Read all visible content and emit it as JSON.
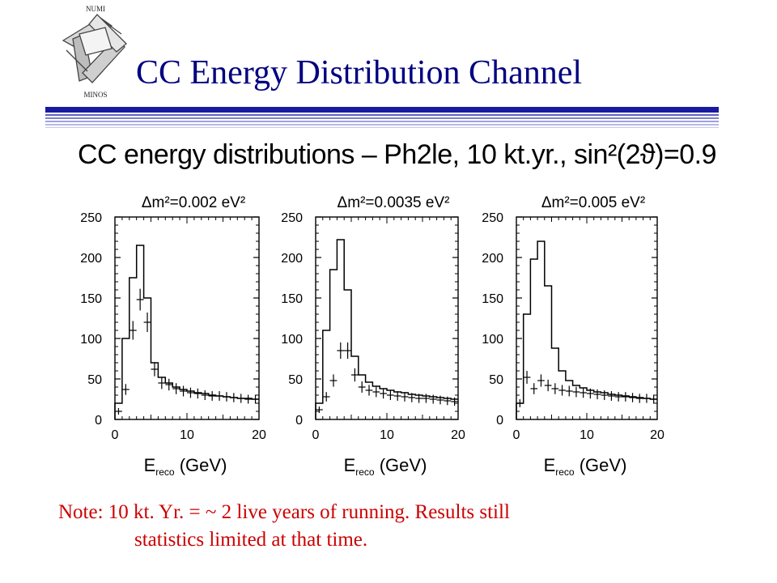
{
  "logo": {
    "top_text": "NUMI",
    "bottom_text": "MINOS"
  },
  "slide": {
    "title": "CC Energy Distribution Channel"
  },
  "figure": {
    "heading": "CC energy distributions – Ph2le, 10 kt.yr., sin²(2ϑ)=0.9"
  },
  "note": {
    "line1": "Note: 10 kt. Yr. = ~ 2 live years of running.  Results still",
    "line2": "statistics limited at that time."
  },
  "colors": {
    "title": "#000080",
    "note": "#cc0000",
    "rule": "#1a1aa0",
    "rule_light": "#8080d0"
  },
  "chart_data": [
    {
      "type": "line",
      "title": "Δm²=0.002 eV²",
      "xlabel": "E_reco (GeV)",
      "xlim": [
        0,
        20
      ],
      "ylim": [
        0,
        250
      ],
      "x_ticks": [
        0,
        10,
        20
      ],
      "y_ticks": [
        0,
        50,
        100,
        150,
        200,
        250
      ],
      "series": [
        {
          "style": "histogram",
          "x": [
            0.5,
            1.5,
            2.5,
            3.5,
            4.5,
            5.5,
            6.5,
            7.5,
            8.5,
            9.5,
            10.5,
            11.5,
            12.5,
            13.5,
            14.5,
            15.5,
            16.5,
            17.5,
            18.5,
            19.5
          ],
          "values": [
            20,
            100,
            175,
            215,
            150,
            70,
            52,
            45,
            40,
            37,
            35,
            33,
            32,
            30,
            29,
            28,
            27,
            26,
            26,
            25
          ]
        },
        {
          "style": "points_with_errors",
          "x": [
            0.5,
            1.5,
            2.5,
            3.5,
            4.5,
            5.5,
            6.5,
            7.5,
            8.5,
            9.5,
            10.5,
            11.5,
            12.5,
            13.5,
            14.5,
            15.5,
            16.5,
            17.5,
            18.5,
            19.5
          ],
          "values": [
            10,
            37,
            110,
            148,
            120,
            62,
            45,
            43,
            38,
            35,
            33,
            32,
            30,
            29,
            29,
            28,
            27,
            26,
            25,
            25
          ]
        }
      ]
    },
    {
      "type": "line",
      "title": "Δm²=0.0035 eV²",
      "xlabel": "E_reco (GeV)",
      "xlim": [
        0,
        20
      ],
      "ylim": [
        0,
        250
      ],
      "x_ticks": [
        0,
        10,
        20
      ],
      "y_ticks": [
        0,
        50,
        100,
        150,
        200,
        250
      ],
      "series": [
        {
          "style": "histogram",
          "x": [
            0.5,
            1.5,
            2.5,
            3.5,
            4.5,
            5.5,
            6.5,
            7.5,
            8.5,
            9.5,
            10.5,
            11.5,
            12.5,
            13.5,
            14.5,
            15.5,
            16.5,
            17.5,
            18.5,
            19.5
          ],
          "values": [
            20,
            110,
            185,
            222,
            160,
            78,
            55,
            46,
            41,
            38,
            36,
            34,
            33,
            31,
            30,
            29,
            28,
            27,
            26,
            25
          ]
        },
        {
          "style": "points_with_errors",
          "x": [
            0.5,
            1.5,
            2.5,
            3.5,
            4.5,
            5.5,
            6.5,
            7.5,
            8.5,
            9.5,
            10.5,
            11.5,
            12.5,
            13.5,
            14.5,
            15.5,
            16.5,
            17.5,
            18.5,
            19.5
          ],
          "values": [
            12,
            28,
            48,
            85,
            85,
            55,
            40,
            36,
            34,
            32,
            30,
            29,
            28,
            27,
            26,
            26,
            25,
            24,
            23,
            22
          ]
        }
      ]
    },
    {
      "type": "line",
      "title": "Δm²=0.005 eV²",
      "xlabel": "E_reco (GeV)",
      "xlim": [
        0,
        20
      ],
      "ylim": [
        0,
        250
      ],
      "x_ticks": [
        0,
        10,
        20
      ],
      "y_ticks": [
        0,
        50,
        100,
        150,
        200,
        250
      ],
      "series": [
        {
          "style": "histogram",
          "x": [
            0.5,
            1.5,
            2.5,
            3.5,
            4.5,
            5.5,
            6.5,
            7.5,
            8.5,
            9.5,
            10.5,
            11.5,
            12.5,
            13.5,
            14.5,
            15.5,
            16.5,
            17.5,
            18.5,
            19.5
          ],
          "values": [
            20,
            130,
            198,
            220,
            165,
            88,
            60,
            48,
            42,
            39,
            36,
            34,
            33,
            31,
            30,
            29,
            28,
            27,
            26,
            25
          ]
        },
        {
          "style": "points_with_errors",
          "x": [
            0.5,
            1.5,
            2.5,
            3.5,
            4.5,
            5.5,
            6.5,
            7.5,
            8.5,
            9.5,
            10.5,
            11.5,
            12.5,
            13.5,
            14.5,
            15.5,
            16.5,
            17.5,
            18.5,
            19.5
          ],
          "values": [
            20,
            52,
            38,
            48,
            42,
            38,
            36,
            35,
            34,
            33,
            32,
            31,
            30,
            29,
            28,
            28,
            27,
            26,
            26,
            25
          ]
        }
      ]
    }
  ]
}
